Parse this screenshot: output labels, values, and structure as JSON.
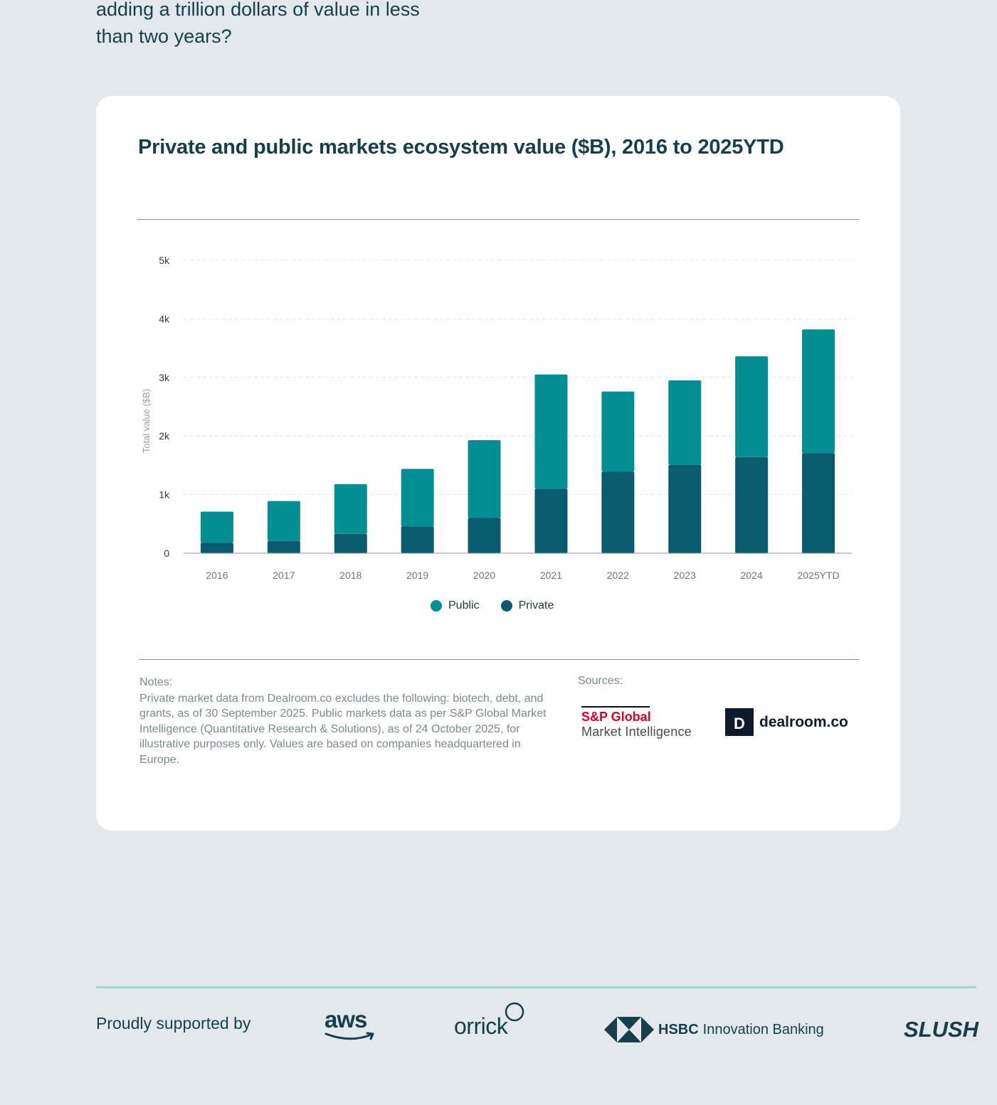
{
  "intro": {
    "line1": "adding a trillion dollars of value in less",
    "line2": "than two years?"
  },
  "chart_data": {
    "type": "bar",
    "stacked": true,
    "title": "Private and public markets ecosystem value ($B), 2016 to 2025YTD",
    "xlabel": "",
    "ylabel": "Total value ($B)",
    "ylim": [
      0,
      5000
    ],
    "yticks": [
      0,
      1000,
      2000,
      3000,
      4000,
      5000
    ],
    "ytick_labels": [
      "0",
      "1k",
      "2k",
      "3k",
      "4k",
      "5k"
    ],
    "categories": [
      "2016",
      "2017",
      "2018",
      "2019",
      "2020",
      "2021",
      "2022",
      "2023",
      "2024",
      "2025YTD"
    ],
    "series": [
      {
        "name": "Private",
        "color": "#085c6e",
        "values": [
          180,
          210,
          330,
          460,
          600,
          1100,
          1390,
          1510,
          1640,
          1710
        ]
      },
      {
        "name": "Public",
        "color": "#018f91",
        "values": [
          530,
          680,
          850,
          980,
          1330,
          1950,
          1370,
          1440,
          1720,
          2110
        ]
      }
    ],
    "legend": {
      "placement": "bottom-center",
      "order": [
        "Public",
        "Private"
      ]
    },
    "grid": "horizontal-dashed"
  },
  "notes": {
    "title": "Notes:",
    "text": "Private market data from Dealroom.co excludes the following: biotech, debt, and grants, as of 30 September 2025. Public markets data as per S&P Global Market Intelligence (Quantitative Research & Solutions), as of 24 October 2025, for illustrative purposes only. Values are based on compa­nies headquartered in Europe."
  },
  "sources": {
    "title": "Sources:",
    "sp_name": "S&P Global",
    "sp_sub": "Market Intelligence",
    "dealroom": "dealroom.co",
    "dealroom_mark": "D"
  },
  "footer": {
    "supported": "Proudly supported by",
    "aws": "aws",
    "orrick": "orrick",
    "hsbc_bold": "HSBC",
    "hsbc_light": "Innovation Banking",
    "slush": "SLUSH"
  }
}
